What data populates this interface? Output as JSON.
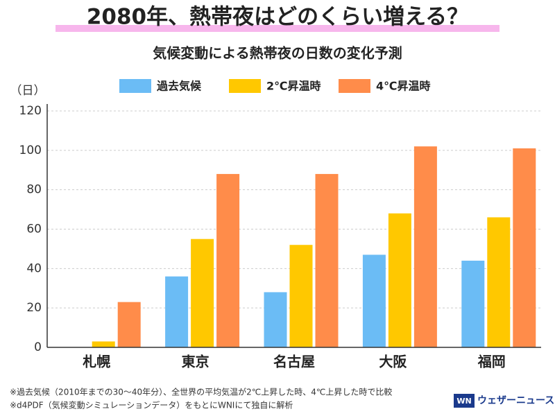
{
  "chart_data": {
    "type": "bar",
    "title": "2080年、熱帯夜はどのくらい増える？",
    "subtitle": "気候変動による熱帯夜の日数の変化予測",
    "y_label": "（日）",
    "categories": [
      "札幌",
      "東京",
      "名古屋",
      "大阪",
      "福岡"
    ],
    "series": [
      {
        "name": "過去気候",
        "color": "#6bbcf5",
        "values": [
          0,
          36,
          28,
          47,
          44
        ]
      },
      {
        "name": "2℃昇温時",
        "color": "#ffc800",
        "values": [
          3,
          55,
          52,
          68,
          66
        ]
      },
      {
        "name": "4℃昇温時",
        "color": "#ff8c4a",
        "values": [
          23,
          88,
          88,
          102,
          101
        ]
      }
    ],
    "ylim": [
      0,
      120
    ],
    "yticks": [
      0,
      20,
      40,
      60,
      80,
      100,
      120
    ],
    "grid": true,
    "notes": [
      "※過去気候（2010年までの30〜40年分）、全世界の平均気温が2℃上昇した時、4℃上昇した時で比較",
      "※d4PDF（気候変動シミュレーションデータ）をもとにWNIにて独自に解析"
    ]
  },
  "logo": {
    "mark": "WN",
    "name": "ウェザーニュース"
  }
}
